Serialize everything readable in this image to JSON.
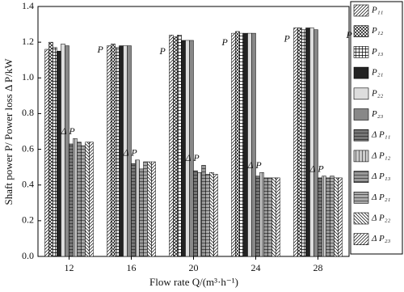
{
  "chart_data": {
    "type": "bar",
    "x_label": "Flow rate Q/(m³·h⁻¹)",
    "y_label": "Shaft power P/ Power loss Δ P/kW",
    "categories": [
      "12",
      "16",
      "20",
      "24",
      "28"
    ],
    "ylim": [
      0,
      1.4
    ],
    "yticks": [
      {
        "value": 0,
        "label": "0.0"
      },
      0.2,
      0.4,
      0.6,
      0.8,
      {
        "value": 1,
        "label": "1.0"
      },
      1.2,
      1.4
    ],
    "annotations": [
      "P",
      "P",
      "P",
      "P",
      "P",
      "Δ P",
      "Δ P",
      "Δ P",
      "Δ P",
      "Δ P"
    ],
    "legend": "right",
    "series": [
      {
        "name": "P₁₁",
        "color": "#ffffff",
        "pattern": "diag",
        "values": [
          1.16,
          1.18,
          1.24,
          1.25,
          1.28
        ]
      },
      {
        "name": "P₁₂",
        "color": "#ffffff",
        "pattern": "cross",
        "values": [
          1.2,
          1.19,
          1.23,
          1.26,
          1.28
        ]
      },
      {
        "name": "P₁₃",
        "color": "#ffffff",
        "pattern": "grid",
        "values": [
          1.17,
          1.17,
          1.24,
          1.25,
          1.27
        ]
      },
      {
        "name": "P₂₁",
        "color": "#222222",
        "pattern": "solid",
        "values": [
          1.15,
          1.18,
          1.21,
          1.25,
          1.28
        ]
      },
      {
        "name": "P₂₂",
        "color": "#dddddd",
        "pattern": "solid",
        "values": [
          1.19,
          1.18,
          1.21,
          1.25,
          1.28
        ]
      },
      {
        "name": "P₂₃",
        "color": "#888888",
        "pattern": "solid",
        "values": [
          1.18,
          1.18,
          1.21,
          1.25,
          1.27
        ]
      },
      {
        "name": "Δ P₁₁",
        "color": "#777777",
        "pattern": "hlines",
        "values": [
          0.63,
          0.52,
          0.48,
          0.45,
          0.44
        ]
      },
      {
        "name": "Δ P₁₂",
        "color": "#cccccc",
        "pattern": "vlines",
        "values": [
          0.66,
          0.54,
          0.47,
          0.47,
          0.45
        ]
      },
      {
        "name": "Δ P₁₃",
        "color": "#999999",
        "pattern": "hlines",
        "values": [
          0.64,
          0.49,
          0.51,
          0.44,
          0.44
        ]
      },
      {
        "name": "Δ P₂₁",
        "color": "#aaaaaa",
        "pattern": "hlines",
        "values": [
          0.62,
          0.53,
          0.46,
          0.44,
          0.45
        ]
      },
      {
        "name": "Δ P₂₂",
        "color": "#ffffff",
        "pattern": "bdiag",
        "values": [
          0.64,
          0.53,
          0.47,
          0.44,
          0.44
        ]
      },
      {
        "name": "Δ P₂₃",
        "color": "#ffffff",
        "pattern": "diag",
        "values": [
          0.64,
          0.53,
          0.46,
          0.44,
          0.44
        ]
      }
    ]
  }
}
